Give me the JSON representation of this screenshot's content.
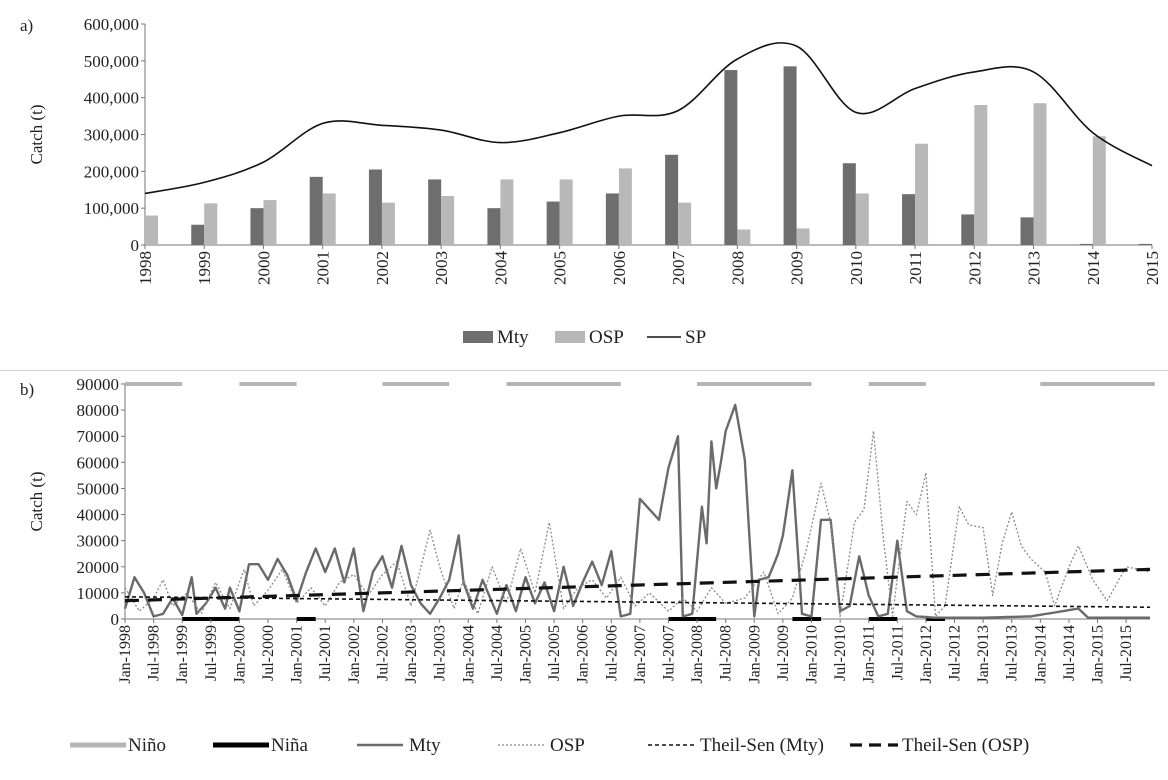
{
  "chart_data": [
    {
      "panel_label": "a)",
      "type": "bar",
      "ylabel": "Catch (t)",
      "ylim": [
        0,
        600000
      ],
      "yticks": [
        "0",
        "100,000",
        "200,000",
        "300,000",
        "400,000",
        "500,000",
        "600,000"
      ],
      "categories": [
        "1998",
        "1999",
        "2000",
        "2001",
        "2002",
        "2003",
        "2004",
        "2005",
        "2006",
        "2007",
        "2008",
        "2009",
        "2010",
        "2011",
        "2012",
        "2013",
        "2014",
        "2015"
      ],
      "series": [
        {
          "name": "Mty",
          "kind": "bar",
          "color": "#6e6e6e",
          "values": [
            0,
            55000,
            100000,
            185000,
            205000,
            178000,
            100000,
            118000,
            140000,
            245000,
            475000,
            485000,
            222000,
            138000,
            83000,
            75000,
            3000,
            3000
          ]
        },
        {
          "name": "OSP",
          "kind": "bar",
          "color": "#b8b8b8",
          "values": [
            80000,
            113000,
            122000,
            140000,
            115000,
            133000,
            178000,
            178000,
            208000,
            115000,
            42000,
            45000,
            140000,
            275000,
            380000,
            385000,
            295000,
            0
          ]
        },
        {
          "name": "SP",
          "kind": "line",
          "color": "#111111",
          "values": [
            140000,
            170000,
            225000,
            330000,
            325000,
            312000,
            278000,
            305000,
            350000,
            365000,
            505000,
            540000,
            360000,
            425000,
            470000,
            470000,
            305000,
            215000
          ]
        }
      ],
      "legend": [
        "Mty",
        "OSP",
        "SP"
      ],
      "legend_position": "bottom",
      "grid": false
    },
    {
      "panel_label": "b)",
      "type": "line",
      "ylabel": "Catch (t)",
      "ylim": [
        0,
        90000
      ],
      "yticks": [
        "0",
        "10000",
        "20000",
        "30000",
        "40000",
        "50000",
        "60000",
        "70000",
        "80000",
        "90000"
      ],
      "xtick_labels": [
        "Jan-1998",
        "Jul-1998",
        "Jan-1999",
        "Jul-1999",
        "Jan-2000",
        "Jul-2000",
        "Jan-2001",
        "Jul-2001",
        "Jan-2002",
        "Jul-2002",
        "Jan-2003",
        "Jul-2003",
        "Jan-2004",
        "Jul-2004",
        "Jan-2005",
        "Jul-2005",
        "Jan-2006",
        "Jul-2006",
        "Jan-2007",
        "Jul-2007",
        "Jan-2008",
        "Jul-2008",
        "Jan-2009",
        "Jul-2009",
        "Jan-2010",
        "Jul-2010",
        "Jan-2011",
        "Jul-2011",
        "Jan-2012",
        "Jul-2012",
        "Jan-2013",
        "Jul-2013",
        "Jan-2014",
        "Jul-2014",
        "Jan-2015",
        "Jul-2015"
      ],
      "series": [
        {
          "name": "Niño",
          "kind": "band",
          "color": "#b5b5b5",
          "level": 90000,
          "intervals": [
            [
              0,
              12
            ],
            [
              24,
              36
            ],
            [
              54,
              68
            ],
            [
              80,
              104
            ],
            [
              120,
              144
            ],
            [
              156,
              168
            ],
            [
              192,
              216
            ]
          ]
        },
        {
          "name": "Niña",
          "kind": "band",
          "color": "#000000",
          "level": 0,
          "intervals": [
            [
              12,
              24
            ],
            [
              36,
              40
            ],
            [
              114,
              124
            ],
            [
              140,
              146
            ],
            [
              156,
              162
            ],
            [
              168,
              172
            ]
          ]
        },
        {
          "name": "Mty",
          "kind": "line",
          "color": "#6a6a6a",
          "knots": [
            [
              0,
              4000
            ],
            [
              2,
              16000
            ],
            [
              4,
              10000
            ],
            [
              6,
              1000
            ],
            [
              8,
              2000
            ],
            [
              10,
              8000
            ],
            [
              12,
              1500
            ],
            [
              14,
              16000
            ],
            [
              15,
              2000
            ],
            [
              17,
              6000
            ],
            [
              19,
              12000
            ],
            [
              21,
              4000
            ],
            [
              22,
              12000
            ],
            [
              24,
              3000
            ],
            [
              26,
              21000
            ],
            [
              28,
              21000
            ],
            [
              30,
              15000
            ],
            [
              32,
              23000
            ],
            [
              34,
              17000
            ],
            [
              36,
              7000
            ],
            [
              38,
              18000
            ],
            [
              40,
              27000
            ],
            [
              42,
              18000
            ],
            [
              44,
              27000
            ],
            [
              46,
              14000
            ],
            [
              48,
              27000
            ],
            [
              50,
              3000
            ],
            [
              52,
              18000
            ],
            [
              54,
              24000
            ],
            [
              56,
              12000
            ],
            [
              58,
              28000
            ],
            [
              60,
              13000
            ],
            [
              62,
              6000
            ],
            [
              64,
              2000
            ],
            [
              66,
              8000
            ],
            [
              68,
              15000
            ],
            [
              70,
              32000
            ],
            [
              71,
              14000
            ],
            [
              73,
              4000
            ],
            [
              75,
              15000
            ],
            [
              78,
              2000
            ],
            [
              80,
              13000
            ],
            [
              82,
              3000
            ],
            [
              84,
              16000
            ],
            [
              86,
              6000
            ],
            [
              88,
              14000
            ],
            [
              90,
              3000
            ],
            [
              92,
              20000
            ],
            [
              94,
              5000
            ],
            [
              96,
              14000
            ],
            [
              98,
              22000
            ],
            [
              100,
              13000
            ],
            [
              102,
              26000
            ],
            [
              104,
              1000
            ],
            [
              106,
              2000
            ],
            [
              108,
              46000
            ],
            [
              110,
              42000
            ],
            [
              112,
              38000
            ],
            [
              114,
              58000
            ],
            [
              116,
              70000
            ],
            [
              117,
              1000
            ],
            [
              119,
              2000
            ],
            [
              121,
              43000
            ],
            [
              122,
              29000
            ],
            [
              123,
              68000
            ],
            [
              124,
              50000
            ],
            [
              125,
              60000
            ],
            [
              126,
              72000
            ],
            [
              128,
              82000
            ],
            [
              130,
              61000
            ],
            [
              132,
              1000
            ],
            [
              133,
              15000
            ],
            [
              135,
              16000
            ],
            [
              137,
              25000
            ],
            [
              138,
              32000
            ],
            [
              140,
              57000
            ],
            [
              142,
              2000
            ],
            [
              144,
              1000
            ],
            [
              146,
              38000
            ],
            [
              148,
              38000
            ],
            [
              150,
              3000
            ],
            [
              152,
              5000
            ],
            [
              154,
              24000
            ],
            [
              156,
              9000
            ],
            [
              158,
              1000
            ],
            [
              160,
              2000
            ],
            [
              162,
              30000
            ],
            [
              164,
              3000
            ],
            [
              166,
              1000
            ],
            [
              170,
              500
            ],
            [
              180,
              500
            ],
            [
              190,
              1000
            ],
            [
              200,
              4000
            ],
            [
              202,
              500
            ],
            [
              215,
              500
            ]
          ]
        },
        {
          "name": "OSP",
          "kind": "line",
          "dashed": "dotted",
          "color": "#8a8a8a",
          "knots": [
            [
              0,
              12000
            ],
            [
              3,
              3000
            ],
            [
              6,
              8000
            ],
            [
              8,
              15000
            ],
            [
              10,
              5000
            ],
            [
              13,
              10000
            ],
            [
              16,
              2000
            ],
            [
              19,
              14000
            ],
            [
              22,
              4000
            ],
            [
              25,
              19000
            ],
            [
              27,
              5000
            ],
            [
              30,
              11000
            ],
            [
              33,
              19000
            ],
            [
              36,
              6000
            ],
            [
              39,
              12000
            ],
            [
              42,
              5000
            ],
            [
              45,
              14000
            ],
            [
              48,
              17000
            ],
            [
              51,
              9000
            ],
            [
              54,
              17000
            ],
            [
              57,
              22000
            ],
            [
              60,
              5000
            ],
            [
              64,
              34000
            ],
            [
              66,
              20000
            ],
            [
              69,
              4000
            ],
            [
              71,
              15000
            ],
            [
              74,
              2000
            ],
            [
              77,
              20000
            ],
            [
              80,
              6000
            ],
            [
              83,
              27000
            ],
            [
              86,
              10000
            ],
            [
              89,
              37000
            ],
            [
              92,
              4000
            ],
            [
              95,
              12000
            ],
            [
              98,
              15000
            ],
            [
              101,
              8000
            ],
            [
              104,
              16000
            ],
            [
              107,
              5000
            ],
            [
              110,
              10000
            ],
            [
              114,
              3000
            ],
            [
              117,
              8000
            ],
            [
              120,
              3000
            ],
            [
              123,
              12000
            ],
            [
              126,
              6000
            ],
            [
              130,
              8000
            ],
            [
              134,
              18000
            ],
            [
              137,
              2000
            ],
            [
              140,
              8000
            ],
            [
              143,
              27000
            ],
            [
              146,
              52000
            ],
            [
              148,
              37000
            ],
            [
              150,
              1000
            ],
            [
              153,
              37000
            ],
            [
              155,
              42000
            ],
            [
              157,
              72000
            ],
            [
              159,
              32000
            ],
            [
              161,
              1000
            ],
            [
              164,
              45000
            ],
            [
              166,
              40000
            ],
            [
              168,
              56000
            ],
            [
              170,
              1000
            ],
            [
              172,
              5000
            ],
            [
              175,
              43000
            ],
            [
              177,
              36000
            ],
            [
              180,
              35000
            ],
            [
              182,
              9000
            ],
            [
              184,
              29000
            ],
            [
              186,
              41000
            ],
            [
              188,
              28000
            ],
            [
              190,
              23000
            ],
            [
              193,
              18000
            ],
            [
              195,
              5000
            ],
            [
              198,
              20000
            ],
            [
              200,
              28000
            ],
            [
              203,
              15000
            ],
            [
              206,
              7000
            ],
            [
              210,
              20000
            ],
            [
              215,
              18000
            ]
          ]
        },
        {
          "name": "Theil-Sen (Mty)",
          "kind": "trend",
          "dashed": "short",
          "color": "#111111",
          "points": [
            [
              0,
              8500
            ],
            [
              215,
              4500
            ]
          ]
        },
        {
          "name": "Theil-Sen (OSP)",
          "kind": "trend",
          "dashed": "long",
          "color": "#111111",
          "points": [
            [
              0,
              7000
            ],
            [
              215,
              19000
            ]
          ]
        }
      ],
      "legend": [
        "Niño",
        "Niña",
        "Mty",
        "OSP",
        "Theil-Sen (Mty)",
        "Theil-Sen (OSP)"
      ],
      "legend_position": "bottom",
      "grid": false
    }
  ]
}
